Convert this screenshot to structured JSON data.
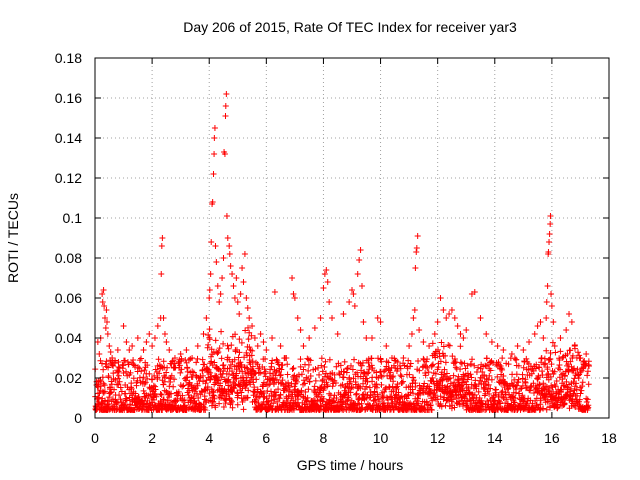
{
  "chart_data": {
    "type": "scatter",
    "title": "Day 206 of 2015, Rate Of TEC Index for receiver yar3",
    "xlabel": "GPS time / hours",
    "ylabel": "ROTI / TECUs",
    "xlim": [
      0,
      18
    ],
    "ylim": [
      0,
      0.18
    ],
    "x_ticks": [
      0,
      2,
      4,
      6,
      8,
      10,
      12,
      14,
      16,
      18
    ],
    "y_ticks": [
      0,
      0.02,
      0.04,
      0.06,
      0.08,
      0.1,
      0.12,
      0.14,
      0.16,
      0.18
    ],
    "x_tick_labels": [
      "0",
      "2",
      "4",
      "6",
      "8",
      "10",
      "12",
      "14",
      "16",
      "18"
    ],
    "y_tick_labels": [
      "0",
      "0.02",
      "0.04",
      "0.06",
      "0.08",
      "0.1",
      "0.12",
      "0.14",
      "0.16",
      "0.18"
    ],
    "grid": true,
    "marker": "+",
    "series": [
      {
        "name": "ROTI",
        "color": "#ff0000",
        "x_range": [
          0,
          17.3
        ],
        "points": [
          [
            0.1,
            0.038
          ],
          [
            0.15,
            0.032
          ],
          [
            0.2,
            0.04
          ],
          [
            0.25,
            0.062
          ],
          [
            0.27,
            0.058
          ],
          [
            0.3,
            0.064
          ],
          [
            0.32,
            0.056
          ],
          [
            0.35,
            0.05
          ],
          [
            0.38,
            0.045
          ],
          [
            0.4,
            0.054
          ],
          [
            0.42,
            0.048
          ],
          [
            0.45,
            0.042
          ],
          [
            0.5,
            0.036
          ],
          [
            0.55,
            0.033
          ],
          [
            0.6,
            0.03
          ],
          [
            0.7,
            0.028
          ],
          [
            0.8,
            0.034
          ],
          [
            1.0,
            0.046
          ],
          [
            1.1,
            0.038
          ],
          [
            1.2,
            0.034
          ],
          [
            1.3,
            0.036
          ],
          [
            1.5,
            0.04
          ],
          [
            1.7,
            0.034
          ],
          [
            1.8,
            0.038
          ],
          [
            1.9,
            0.042
          ],
          [
            2.0,
            0.036
          ],
          [
            2.1,
            0.04
          ],
          [
            2.2,
            0.046
          ],
          [
            2.3,
            0.05
          ],
          [
            2.32,
            0.072
          ],
          [
            2.34,
            0.086
          ],
          [
            2.36,
            0.09
          ],
          [
            2.4,
            0.05
          ],
          [
            2.45,
            0.042
          ],
          [
            2.5,
            0.038
          ],
          [
            2.6,
            0.034
          ],
          [
            2.8,
            0.03
          ],
          [
            3.0,
            0.032
          ],
          [
            3.2,
            0.034
          ],
          [
            3.4,
            0.03
          ],
          [
            3.6,
            0.036
          ],
          [
            3.8,
            0.042
          ],
          [
            3.9,
            0.05
          ],
          [
            4.0,
            0.06
          ],
          [
            4.02,
            0.064
          ],
          [
            4.05,
            0.072
          ],
          [
            4.07,
            0.088
          ],
          [
            4.1,
            0.107
          ],
          [
            4.12,
            0.108
          ],
          [
            4.15,
            0.122
          ],
          [
            4.17,
            0.132
          ],
          [
            4.18,
            0.14
          ],
          [
            4.2,
            0.145
          ],
          [
            4.22,
            0.086
          ],
          [
            4.25,
            0.078
          ],
          [
            4.3,
            0.066
          ],
          [
            4.35,
            0.058
          ],
          [
            4.4,
            0.062
          ],
          [
            4.45,
            0.07
          ],
          [
            4.5,
            0.08
          ],
          [
            4.52,
            0.133
          ],
          [
            4.55,
            0.132
          ],
          [
            4.57,
            0.151
          ],
          [
            4.58,
            0.156
          ],
          [
            4.6,
            0.162
          ],
          [
            4.62,
            0.101
          ],
          [
            4.65,
            0.09
          ],
          [
            4.7,
            0.086
          ],
          [
            4.72,
            0.082
          ],
          [
            4.75,
            0.076
          ],
          [
            4.8,
            0.072
          ],
          [
            4.85,
            0.066
          ],
          [
            4.9,
            0.06
          ],
          [
            4.95,
            0.07
          ],
          [
            5.0,
            0.058
          ],
          [
            5.05,
            0.052
          ],
          [
            5.1,
            0.062
          ],
          [
            5.15,
            0.075
          ],
          [
            5.2,
            0.068
          ],
          [
            5.25,
            0.082
          ],
          [
            5.3,
            0.06
          ],
          [
            5.35,
            0.055
          ],
          [
            5.4,
            0.05
          ],
          [
            5.5,
            0.046
          ],
          [
            5.6,
            0.04
          ],
          [
            5.7,
            0.036
          ],
          [
            5.8,
            0.042
          ],
          [
            5.9,
            0.038
          ],
          [
            6.0,
            0.034
          ],
          [
            6.2,
            0.04
          ],
          [
            6.3,
            0.063
          ],
          [
            6.5,
            0.036
          ],
          [
            6.7,
            0.03
          ],
          [
            6.9,
            0.07
          ],
          [
            6.95,
            0.062
          ],
          [
            7.0,
            0.06
          ],
          [
            7.1,
            0.05
          ],
          [
            7.2,
            0.044
          ],
          [
            7.3,
            0.036
          ],
          [
            7.5,
            0.04
          ],
          [
            7.7,
            0.045
          ],
          [
            7.9,
            0.05
          ],
          [
            8.0,
            0.065
          ],
          [
            8.05,
            0.072
          ],
          [
            8.1,
            0.074
          ],
          [
            8.15,
            0.068
          ],
          [
            8.2,
            0.058
          ],
          [
            8.3,
            0.05
          ],
          [
            8.5,
            0.042
          ],
          [
            8.7,
            0.052
          ],
          [
            8.9,
            0.058
          ],
          [
            9.0,
            0.064
          ],
          [
            9.05,
            0.062
          ],
          [
            9.1,
            0.056
          ],
          [
            9.2,
            0.072
          ],
          [
            9.25,
            0.079
          ],
          [
            9.3,
            0.084
          ],
          [
            9.35,
            0.066
          ],
          [
            9.4,
            0.048
          ],
          [
            9.5,
            0.04
          ],
          [
            9.7,
            0.04
          ],
          [
            9.9,
            0.05
          ],
          [
            10.0,
            0.048
          ],
          [
            10.2,
            0.036
          ],
          [
            10.4,
            0.03
          ],
          [
            10.6,
            0.028
          ],
          [
            10.8,
            0.03
          ],
          [
            11.0,
            0.036
          ],
          [
            11.1,
            0.042
          ],
          [
            11.15,
            0.05
          ],
          [
            11.2,
            0.054
          ],
          [
            11.22,
            0.075
          ],
          [
            11.25,
            0.083
          ],
          [
            11.27,
            0.085
          ],
          [
            11.3,
            0.091
          ],
          [
            11.35,
            0.044
          ],
          [
            11.5,
            0.038
          ],
          [
            11.7,
            0.036
          ],
          [
            11.9,
            0.042
          ],
          [
            12.0,
            0.048
          ],
          [
            12.1,
            0.06
          ],
          [
            12.2,
            0.054
          ],
          [
            12.3,
            0.05
          ],
          [
            12.4,
            0.052
          ],
          [
            12.5,
            0.054
          ],
          [
            12.6,
            0.05
          ],
          [
            12.7,
            0.046
          ],
          [
            12.8,
            0.042
          ],
          [
            12.9,
            0.04
          ],
          [
            13.0,
            0.044
          ],
          [
            13.2,
            0.062
          ],
          [
            13.3,
            0.063
          ],
          [
            13.5,
            0.05
          ],
          [
            13.7,
            0.042
          ],
          [
            13.9,
            0.038
          ],
          [
            14.1,
            0.036
          ],
          [
            14.3,
            0.034
          ],
          [
            14.6,
            0.032
          ],
          [
            14.8,
            0.036
          ],
          [
            15.0,
            0.034
          ],
          [
            15.2,
            0.038
          ],
          [
            15.4,
            0.042
          ],
          [
            15.5,
            0.046
          ],
          [
            15.6,
            0.048
          ],
          [
            15.7,
            0.04
          ],
          [
            15.8,
            0.05
          ],
          [
            15.82,
            0.058
          ],
          [
            15.85,
            0.066
          ],
          [
            15.87,
            0.082
          ],
          [
            15.88,
            0.083
          ],
          [
            15.9,
            0.088
          ],
          [
            15.92,
            0.092
          ],
          [
            15.94,
            0.097
          ],
          [
            15.95,
            0.101
          ],
          [
            15.97,
            0.062
          ],
          [
            16.0,
            0.056
          ],
          [
            16.05,
            0.048
          ],
          [
            16.1,
            0.036
          ],
          [
            16.3,
            0.04
          ],
          [
            16.5,
            0.044
          ],
          [
            16.6,
            0.052
          ],
          [
            16.7,
            0.048
          ],
          [
            16.8,
            0.036
          ],
          [
            17.0,
            0.03
          ],
          [
            17.1,
            0.028
          ],
          [
            17.2,
            0.032
          ],
          [
            17.3,
            0.026
          ]
        ]
      }
    ]
  }
}
